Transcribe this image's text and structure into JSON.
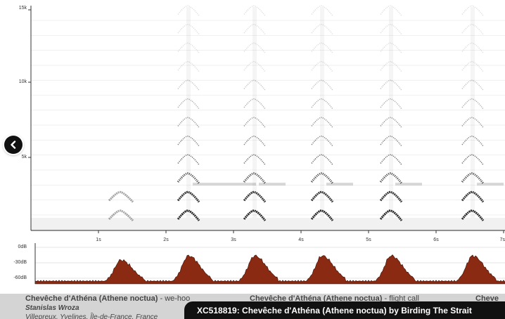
{
  "spectrogram": {
    "freq_ticks": [
      "15k",
      "10k",
      "5k"
    ],
    "time_ticks": [
      "1s",
      "2s",
      "3s",
      "4s",
      "5s",
      "6s",
      "7s"
    ]
  },
  "oscillogram": {
    "db_ticks": [
      "0dB",
      "-30dB",
      "-60dB"
    ],
    "fill_color": "#8b2a12"
  },
  "nav": {
    "back_icon": "chevron-left-icon"
  },
  "recordings": [
    {
      "species": "Chevêche d'Athéna (Athene noctua)",
      "separator": " - ",
      "comment": "we-hoo",
      "author": "Stanislas Wroza",
      "location": "Villepreux, Yvelines, Île-de-France, France"
    },
    {
      "species": "Chevêche d'Athéna (Athene noctua)",
      "separator": " - ",
      "comment": "flight call"
    },
    {
      "species": "Cheve"
    }
  ],
  "caption": "XC518819: Chevêche d'Athéna (Athene noctua) by Birding The Strait"
}
